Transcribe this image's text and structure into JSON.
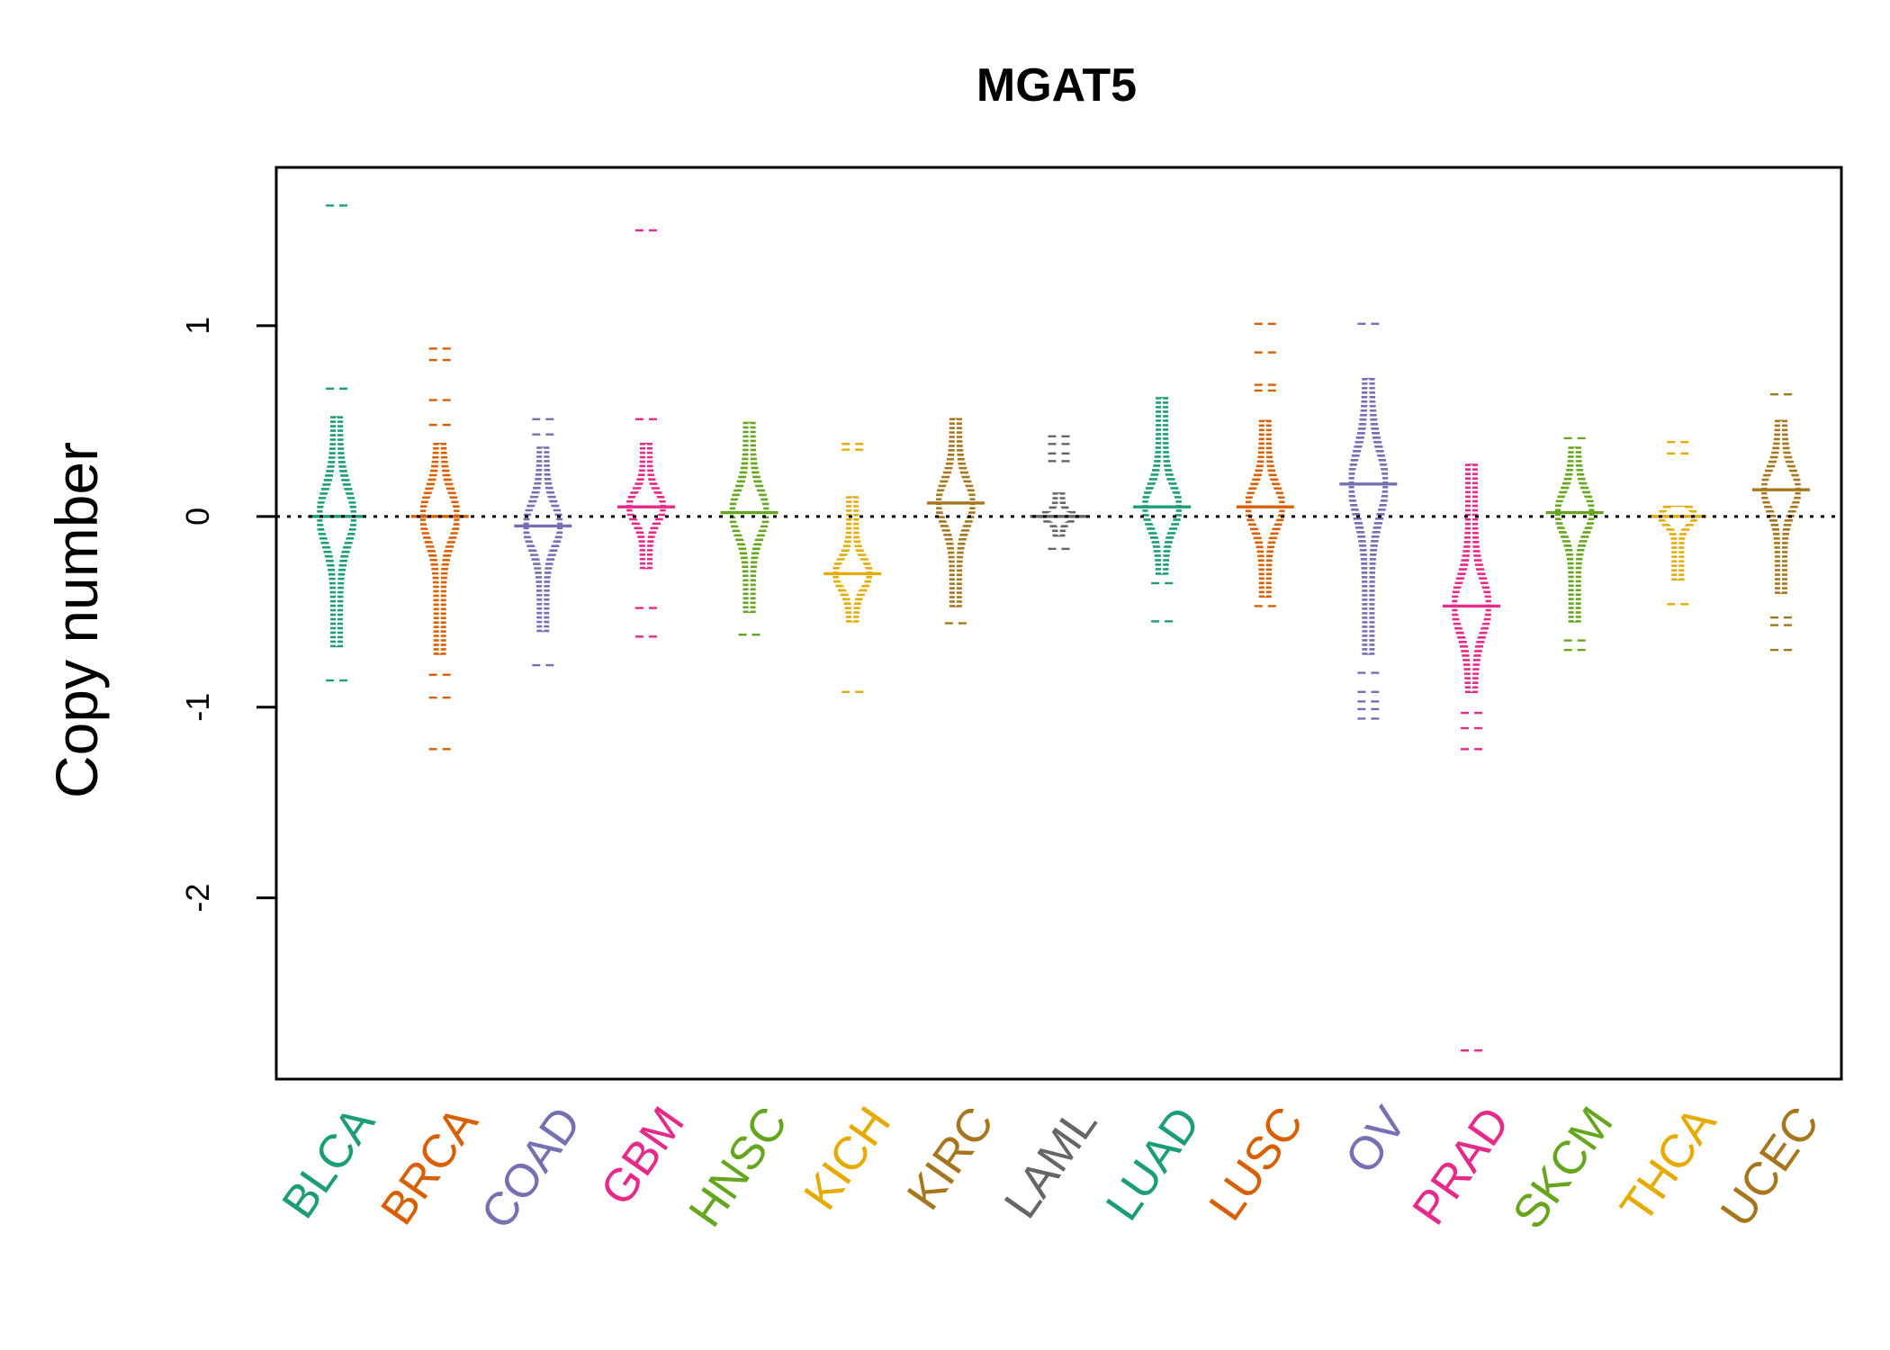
{
  "chart_data": {
    "type": "beanplot",
    "title": "MGAT5",
    "ylabel": "Copy number",
    "xlabel": "",
    "ylim": [
      -2.95,
      1.83
    ],
    "yticks": [
      1,
      0,
      -1,
      -2
    ],
    "ytick_labels": [
      "1",
      "0",
      "-1",
      "-2"
    ],
    "reference_line": 0,
    "categories": [
      {
        "name": "BLCA",
        "color": "#1b9e77",
        "max": 1.63,
        "min": -0.86,
        "core": [
          -0.68,
          0.52
        ],
        "median": 0.0,
        "outliers": [
          1.63,
          0.67,
          -0.86
        ]
      },
      {
        "name": "BRCA",
        "color": "#d95f02",
        "max": 0.88,
        "min": -1.22,
        "core": [
          -0.72,
          0.38
        ],
        "median": 0.0,
        "outliers": [
          0.88,
          0.82,
          0.61,
          0.48,
          -0.83,
          -0.95,
          -1.22
        ]
      },
      {
        "name": "COAD",
        "color": "#7570b3",
        "max": 0.51,
        "min": -0.78,
        "core": [
          -0.6,
          0.36
        ],
        "median": -0.05,
        "outliers": [
          0.51,
          0.43,
          -0.78
        ]
      },
      {
        "name": "GBM",
        "color": "#e7298a",
        "max": 1.5,
        "min": -0.63,
        "core": [
          -0.27,
          0.38
        ],
        "median": 0.05,
        "outliers": [
          1.5,
          0.51,
          -0.48,
          -0.63
        ]
      },
      {
        "name": "HNSC",
        "color": "#66a61e",
        "max": 0.5,
        "min": -0.62,
        "core": [
          -0.5,
          0.49
        ],
        "median": 0.02,
        "outliers": [
          -0.62
        ]
      },
      {
        "name": "KICH",
        "color": "#e6ab02",
        "max": 0.38,
        "min": -0.92,
        "core": [
          -0.55,
          0.1
        ],
        "median": -0.3,
        "outliers": [
          0.38,
          0.35,
          -0.92
        ]
      },
      {
        "name": "KIRC",
        "color": "#a6761d",
        "max": 0.51,
        "min": -0.56,
        "core": [
          -0.47,
          0.51
        ],
        "median": 0.07,
        "outliers": [
          -0.56
        ]
      },
      {
        "name": "LAML",
        "color": "#666666",
        "max": 0.42,
        "min": -0.17,
        "core": [
          -0.1,
          0.12
        ],
        "median": 0.0,
        "outliers": [
          0.42,
          0.38,
          0.33,
          0.29,
          -0.17
        ]
      },
      {
        "name": "LUAD",
        "color": "#1b9e77",
        "max": 0.62,
        "min": -0.55,
        "core": [
          -0.3,
          0.62
        ],
        "median": 0.05,
        "outliers": [
          -0.35,
          -0.55
        ]
      },
      {
        "name": "LUSC",
        "color": "#d95f02",
        "max": 1.01,
        "min": -0.47,
        "core": [
          -0.42,
          0.5
        ],
        "median": 0.05,
        "outliers": [
          1.01,
          0.86,
          0.69,
          0.66,
          -0.47
        ]
      },
      {
        "name": "OV",
        "color": "#7570b3",
        "max": 1.01,
        "min": -1.06,
        "core": [
          -0.72,
          0.72
        ],
        "median": 0.17,
        "outliers": [
          1.01,
          -0.82,
          -0.92,
          -0.97,
          -1.01,
          -1.06
        ]
      },
      {
        "name": "PRAD",
        "color": "#e7298a",
        "max": 0.27,
        "min": -2.8,
        "core": [
          -0.92,
          0.27
        ],
        "median": -0.47,
        "outliers": [
          -1.03,
          -1.11,
          -1.22,
          -2.8
        ]
      },
      {
        "name": "SKCM",
        "color": "#66a61e",
        "max": 0.41,
        "min": -0.7,
        "core": [
          -0.55,
          0.36
        ],
        "median": 0.02,
        "outliers": [
          0.41,
          -0.65,
          -0.7
        ]
      },
      {
        "name": "THCA",
        "color": "#e6ab02",
        "max": 0.39,
        "min": -0.46,
        "core": [
          -0.33,
          0.05
        ],
        "median": 0.0,
        "outliers": [
          0.39,
          0.33,
          -0.46
        ]
      },
      {
        "name": "UCEC",
        "color": "#a6761d",
        "max": 0.64,
        "min": -0.7,
        "core": [
          -0.4,
          0.5
        ],
        "median": 0.14,
        "outliers": [
          0.64,
          -0.53,
          -0.57,
          -0.7
        ]
      }
    ]
  }
}
